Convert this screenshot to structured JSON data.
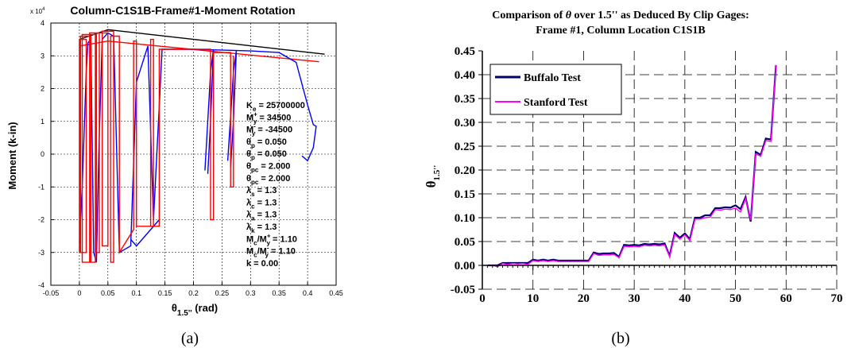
{
  "chart_data": [
    {
      "type": "line",
      "title": "Column-C1S1B-Frame#1-Moment Rotation",
      "xlabel_main": "θ",
      "xlabel_sub": "1.5''",
      "xlabel_unit": " (rad)",
      "ylabel": "Moment (k-in)",
      "y_multiplier": "x 10",
      "y_multiplier_exp": "4",
      "xlim": [
        -0.05,
        0.45
      ],
      "ylim": [
        -40000,
        40000
      ],
      "xticks": [
        "-0.05",
        "0",
        "0.05",
        "0.1",
        "0.15",
        "0.2",
        "0.25",
        "0.3",
        "0.35",
        "0.4",
        "0.45"
      ],
      "xtick_values": [
        -0.05,
        0,
        0.05,
        0.1,
        0.15,
        0.2,
        0.25,
        0.3,
        0.35,
        0.4,
        0.45
      ],
      "yticks": [
        "-4",
        "-3",
        "-2",
        "-1",
        "0",
        "1",
        "2",
        "3",
        "4"
      ],
      "ytick_values": [
        -40000,
        -30000,
        -20000,
        -10000,
        0,
        10000,
        20000,
        30000,
        40000
      ],
      "grid": "dashed",
      "series": [
        {
          "color": "#000000",
          "x": [
            0,
            0.05,
            0.43
          ],
          "y": [
            35000,
            38000,
            30500
          ]
        },
        {
          "color": "#ff0000",
          "x": [
            0,
            0.05,
            0.42
          ],
          "y": [
            33000,
            34500,
            28200
          ]
        },
        {
          "color": "#0000ff",
          "x": [
            0.0,
            0.005,
            0.012,
            0.015,
            0.02,
            0.025,
            0.03,
            0.034,
            0.04,
            0.05,
            0.06,
            0.07,
            0.09,
            0.1,
            0.12,
            0.13,
            0.145,
            0.2,
            0.3,
            0.35,
            0.38,
            0.4,
            0.41,
            0.415,
            0.41,
            0.4,
            0.39
          ],
          "y": [
            -27000,
            -10000,
            25000,
            34000,
            35000,
            -30000,
            -33000,
            0,
            35000,
            37000,
            36000,
            -30000,
            -28000,
            22000,
            33000,
            -20000,
            32000,
            32000,
            31500,
            31000,
            28000,
            15000,
            9000,
            8500,
            2000,
            -2000,
            -500
          ]
        },
        {
          "color": "#0000ff",
          "x": [
            0.09,
            0.1,
            0.12,
            0.14
          ],
          "y": [
            -26000,
            -28000,
            -24000,
            -20000
          ]
        },
        {
          "color": "#0000ff",
          "x": [
            0.22,
            0.23,
            0.235,
            0.23,
            0.225
          ],
          "y": [
            -5000,
            25000,
            32000,
            10000,
            -6000
          ]
        },
        {
          "color": "#0000ff",
          "x": [
            0.26,
            0.27,
            0.275,
            0.27,
            0.265
          ],
          "y": [
            -2000,
            25000,
            31500,
            10000,
            -4000
          ]
        },
        {
          "color": "#ff0000",
          "x": [
            0.0,
            0.0,
            0.012,
            0.012,
            0.002,
            0.002,
            0.02,
            0.02,
            0.005,
            0.005,
            0.028,
            0.028,
            0.018,
            0.018,
            0.035,
            0.035,
            0.03,
            0.03,
            0.05,
            0.05,
            0.04,
            0.04,
            0.06,
            0.06,
            0.055,
            0.055,
            0.07,
            0.07,
            0.095,
            0.095,
            0.1,
            0.1,
            0.13,
            0.13,
            0.125,
            0.125,
            0.14,
            0.14,
            0.23,
            0.23,
            0.235,
            0.235,
            0.265,
            0.265,
            0.27,
            0.27
          ],
          "y": [
            -30000,
            35000,
            35000,
            -30000,
            -30000,
            36000,
            36000,
            -33000,
            -33000,
            36500,
            36500,
            -33000,
            -33000,
            37000,
            37000,
            -30000,
            -30000,
            37000,
            37000,
            -28000,
            -28000,
            37500,
            37500,
            -33000,
            -33000,
            36000,
            36000,
            -30000,
            -23000,
            34500,
            34500,
            -22000,
            -22000,
            35000,
            35000,
            -22000,
            -22000,
            32000,
            32000,
            -20000,
            -20000,
            31000,
            31000,
            -10000,
            -10000,
            30000
          ]
        }
      ],
      "annotations": [
        {
          "main": "K",
          "sub": "e",
          "rest": " = 25700000"
        },
        {
          "main": "M",
          "sup": "+",
          "sub": "y",
          "rest": " = 34500"
        },
        {
          "main": "M",
          "sup": "-",
          "sub": "y",
          "rest": " = -34500"
        },
        {
          "main": "θ",
          "sub": "p",
          "rest": " = 0.050"
        },
        {
          "main": "θ",
          "sub": "p",
          "rest": " = 0.050"
        },
        {
          "main": "θ",
          "sub": "pc",
          "rest": " = 2.000"
        },
        {
          "main": "θ",
          "sub": "pc",
          "rest": " = 2.000"
        },
        {
          "main": "λ",
          "sub": "s",
          "rest": " = 1.3"
        },
        {
          "main": "λ",
          "sub": "c",
          "rest": " = 1.3"
        },
        {
          "main": "λ",
          "sub": "a",
          "rest": " = 1.3"
        },
        {
          "main": "λ",
          "sub": "k",
          "rest": " = 1.3"
        },
        {
          "main": "M",
          "sub": "c",
          "rest": "/M",
          "sup2": "+",
          "sub2": "y",
          "rest2": " = 1.10"
        },
        {
          "main": "M",
          "sub": "c",
          "rest": "/M",
          "sup2": "-",
          "sub2": "y",
          "rest2": " = 1.10"
        },
        {
          "main": "k = 0.00"
        }
      ],
      "caption": "(a)"
    },
    {
      "type": "line",
      "title_line1_pre": "Comparison of ",
      "title_line1_theta": "θ",
      "title_line1_post": " over 1.5'' as Deduced By Clip Gages:",
      "title_line2": "Frame #1, Column Location C1S1B",
      "ylabel_main": "θ",
      "ylabel_sub": "1.5''",
      "xlabel": "",
      "xlim": [
        0,
        70
      ],
      "ylim": [
        -0.05,
        0.45
      ],
      "xticks": [
        "0",
        "10",
        "20",
        "30",
        "40",
        "50",
        "60",
        "70"
      ],
      "xtick_values": [
        0,
        10,
        20,
        30,
        40,
        50,
        60,
        70
      ],
      "yticks": [
        "-0.05",
        "0.00",
        "0.05",
        "0.10",
        "0.15",
        "0.20",
        "0.25",
        "0.30",
        "0.35",
        "0.40",
        "0.45"
      ],
      "ytick_values": [
        -0.05,
        0,
        0.05,
        0.1,
        0.15,
        0.2,
        0.25,
        0.3,
        0.35,
        0.4,
        0.45
      ],
      "grid": "dashed",
      "legend": "top-left",
      "series": [
        {
          "name": "Buffalo Test",
          "color": "#000066",
          "x": [
            1,
            2,
            3,
            4,
            5,
            6,
            7,
            8,
            9,
            10,
            11,
            12,
            13,
            14,
            15,
            16,
            17,
            18,
            19,
            20,
            21,
            22,
            23,
            24,
            25,
            26,
            27,
            28,
            29,
            30,
            31,
            32,
            33,
            34,
            35,
            36,
            37,
            38,
            39,
            40,
            41,
            42,
            43,
            44,
            45,
            46,
            47,
            48,
            49,
            50,
            51,
            52,
            53,
            54,
            55,
            56,
            57,
            58
          ],
          "y": [
            0.0,
            0.0,
            0.0,
            0.005,
            0.005,
            0.005,
            0.005,
            0.005,
            0.005,
            0.012,
            0.01,
            0.012,
            0.01,
            0.012,
            0.01,
            0.01,
            0.01,
            0.01,
            0.01,
            0.01,
            0.01,
            0.027,
            0.024,
            0.025,
            0.025,
            0.026,
            0.018,
            0.043,
            0.042,
            0.043,
            0.042,
            0.045,
            0.044,
            0.045,
            0.044,
            0.046,
            0.02,
            0.068,
            0.058,
            0.067,
            0.055,
            0.1,
            0.1,
            0.105,
            0.105,
            0.12,
            0.12,
            0.122,
            0.121,
            0.126,
            0.118,
            0.143,
            0.092,
            0.238,
            0.232,
            0.266,
            0.264,
            0.42
          ]
        },
        {
          "name": "Stanford Test",
          "color": "#ff00ff",
          "x": [
            1,
            2,
            3,
            4,
            5,
            6,
            7,
            8,
            9,
            10,
            11,
            12,
            13,
            14,
            15,
            16,
            17,
            18,
            19,
            20,
            21,
            22,
            23,
            24,
            25,
            26,
            27,
            28,
            29,
            30,
            31,
            32,
            33,
            34,
            35,
            36,
            37,
            38,
            39,
            40,
            41,
            42,
            43,
            44,
            45,
            46,
            47,
            48,
            49,
            50,
            51,
            52,
            53,
            54,
            55,
            56,
            57,
            58
          ],
          "y": [
            0.0,
            0.0,
            -0.003,
            0.004,
            0.002,
            0.004,
            0.003,
            0.004,
            0.002,
            0.01,
            0.008,
            0.01,
            0.008,
            0.01,
            0.008,
            0.008,
            0.008,
            0.008,
            0.008,
            0.008,
            0.008,
            0.025,
            0.021,
            0.022,
            0.022,
            0.023,
            0.016,
            0.04,
            0.039,
            0.04,
            0.039,
            0.042,
            0.041,
            0.042,
            0.041,
            0.043,
            0.018,
            0.065,
            0.055,
            0.064,
            0.052,
            0.097,
            0.097,
            0.1,
            0.101,
            0.117,
            0.116,
            0.118,
            0.117,
            0.12,
            0.112,
            0.14,
            0.095,
            0.234,
            0.229,
            0.262,
            0.26,
            0.42
          ]
        }
      ],
      "caption": "(b)"
    }
  ]
}
